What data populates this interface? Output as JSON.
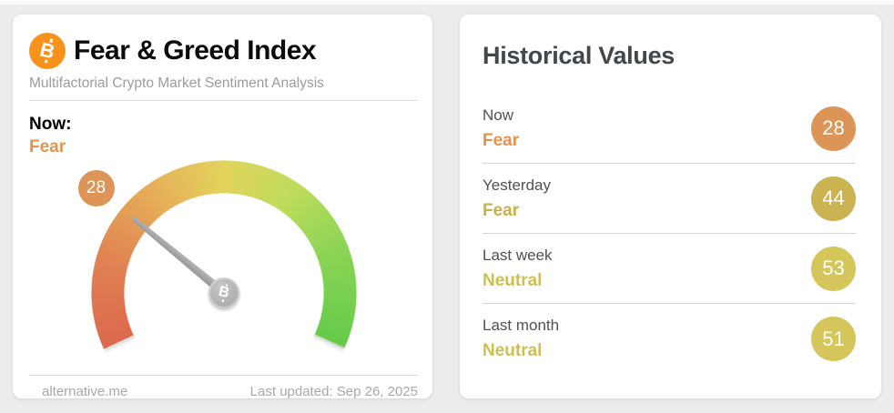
{
  "page": {
    "background": "#ececec",
    "top_strip_color": "#fbfbfb"
  },
  "gauge_card": {
    "logo_color": "#f7931a",
    "title": "Fear & Greed Index",
    "subtitle": "Multifactorial Crypto Market Sentiment Analysis",
    "now_label": "Now:",
    "now_classification": "Fear",
    "now_classification_color": "#e5924e",
    "gauge": {
      "value": 28,
      "min": 0,
      "max": 100,
      "start_angle_deg": -115,
      "end_angle_deg": 115,
      "badge_color": "#dd9457",
      "needle_color": "#a8a8a8",
      "scale_colors": [
        "#dc684d",
        "#e08252",
        "#e2d35c",
        "#8bd455",
        "#65cb49"
      ]
    },
    "footer": {
      "source": "alternative.me",
      "last_updated": "Last updated: Sep 26, 2025"
    }
  },
  "historical_card": {
    "title": "Historical Values",
    "rows": [
      {
        "label": "Now",
        "classification": "Fear",
        "value": "28",
        "classification_color": "#e5924e",
        "badge_color": "#dd9457"
      },
      {
        "label": "Yesterday",
        "classification": "Fear",
        "value": "44",
        "classification_color": "#c7b148",
        "badge_color": "#cbb351"
      },
      {
        "label": "Last week",
        "classification": "Neutral",
        "value": "53",
        "classification_color": "#cfc04d",
        "badge_color": "#d4c65b"
      },
      {
        "label": "Last month",
        "classification": "Neutral",
        "value": "51",
        "classification_color": "#cfc04d",
        "badge_color": "#d4c65b"
      }
    ]
  },
  "chart_data": {
    "type": "gauge",
    "title": "Fear & Greed Index",
    "subtitle": "Multifactorial Crypto Market Sentiment Analysis",
    "value": 28,
    "min": 0,
    "max": 100,
    "classification": "Fear",
    "scale_sweep_deg": 230,
    "scale_colors_low_to_high": [
      "#dc684d",
      "#e08252",
      "#e2d35c",
      "#8bd455",
      "#65cb49"
    ],
    "historical": [
      {
        "period": "Now",
        "value": 28,
        "classification": "Fear"
      },
      {
        "period": "Yesterday",
        "value": 44,
        "classification": "Fear"
      },
      {
        "period": "Last week",
        "value": 53,
        "classification": "Neutral"
      },
      {
        "period": "Last month",
        "value": 51,
        "classification": "Neutral"
      }
    ],
    "source": "alternative.me",
    "last_updated": "Sep 26, 2025"
  }
}
